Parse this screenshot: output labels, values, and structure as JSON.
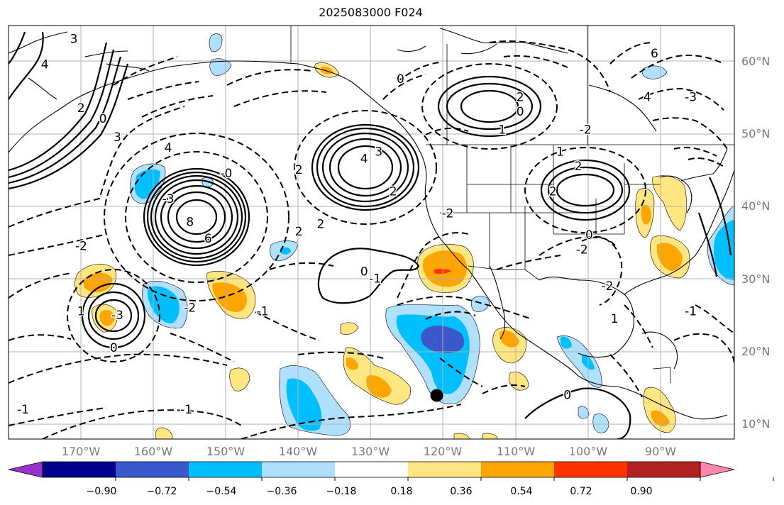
{
  "title": "2025083000 F024",
  "latitude_labels": [
    "60°N",
    "50°N",
    "40°N",
    "30°N",
    "20°N",
    "10°N"
  ],
  "longitude_labels": [
    "170°W",
    "160°W",
    "150°W",
    "140°W",
    "130°W",
    "120°W",
    "110°W",
    "100°W",
    "90°W"
  ],
  "colorbar": {
    "colors": [
      "#9932cc",
      "#00008b",
      "#3a58cc",
      "#00bfff",
      "#b0e0ff",
      "#ffffff",
      "#ffe680",
      "#ffa500",
      "#ff3300",
      "#b22222",
      "#ff88aa"
    ],
    "tick_labels": [
      "−0.90",
      "−0.72",
      "−0.54",
      "−0.36",
      "−0.18",
      "0.18",
      "0.36",
      "0.54",
      "0.72",
      "0.90"
    ]
  },
  "contour_labels": [
    {
      "text": "3",
      "lon": -171,
      "lat": 63
    },
    {
      "text": "4",
      "lon": -175,
      "lat": 59.5
    },
    {
      "text": "2",
      "lon": -170,
      "lat": 53.5
    },
    {
      "text": "0",
      "lon": -167,
      "lat": 52
    },
    {
      "text": "3",
      "lon": -165,
      "lat": 49.5
    },
    {
      "text": "4",
      "lon": -158,
      "lat": 48
    },
    {
      "text": "-0",
      "lon": -150,
      "lat": 44.5
    },
    {
      "text": "2",
      "lon": -140,
      "lat": 45
    },
    {
      "text": "-3",
      "lon": -158,
      "lat": 41
    },
    {
      "text": "8",
      "lon": -155,
      "lat": 37.8
    },
    {
      "text": "6",
      "lon": -152.5,
      "lat": 35.5
    },
    {
      "text": "-2",
      "lon": -170,
      "lat": 34.5
    },
    {
      "text": "2",
      "lon": -140,
      "lat": 36.5
    },
    {
      "text": "2",
      "lon": -137,
      "lat": 37.5
    },
    {
      "text": "4",
      "lon": -131,
      "lat": 46.5
    },
    {
      "text": "3",
      "lon": -129,
      "lat": 47.5
    },
    {
      "text": "2",
      "lon": -127,
      "lat": 42
    },
    {
      "text": "0",
      "lon": -126,
      "lat": 57.5
    },
    {
      "text": "0",
      "lon": -109.5,
      "lat": 53
    },
    {
      "text": "1",
      "lon": -112,
      "lat": 50.5
    },
    {
      "text": "2",
      "lon": -109.5,
      "lat": 55
    },
    {
      "text": "-2",
      "lon": -100.5,
      "lat": 50.5
    },
    {
      "text": "1",
      "lon": -104,
      "lat": 47.5
    },
    {
      "text": "2",
      "lon": -101.5,
      "lat": 45.5
    },
    {
      "text": "2",
      "lon": -105,
      "lat": 42
    },
    {
      "text": "-2",
      "lon": -119.5,
      "lat": 39
    },
    {
      "text": "0",
      "lon": -100,
      "lat": 36
    },
    {
      "text": "-2",
      "lon": -101,
      "lat": 34
    },
    {
      "text": "-2",
      "lon": -97.5,
      "lat": 29
    },
    {
      "text": "1",
      "lon": -96.5,
      "lat": 24.5
    },
    {
      "text": "0",
      "lon": -131,
      "lat": 31
    },
    {
      "text": "-1",
      "lon": -129.5,
      "lat": 30
    },
    {
      "text": "1",
      "lon": -170,
      "lat": 25.5
    },
    {
      "text": "-3",
      "lon": -165,
      "lat": 25
    },
    {
      "text": "0",
      "lon": -165.5,
      "lat": 20.5
    },
    {
      "text": "-2",
      "lon": -155,
      "lat": 26
    },
    {
      "text": "-1",
      "lon": -145,
      "lat": 25.5
    },
    {
      "text": "-1",
      "lon": -155.5,
      "lat": 12
    },
    {
      "text": "-1",
      "lon": -178,
      "lat": 12
    },
    {
      "text": "0",
      "lon": -103,
      "lat": 14
    },
    {
      "text": "-1",
      "lon": -86,
      "lat": 25.5
    },
    {
      "text": "6",
      "lon": -91,
      "lat": 61
    },
    {
      "text": "4",
      "lon": -92,
      "lat": 55
    },
    {
      "text": "-3",
      "lon": -86,
      "lat": 55
    }
  ],
  "features": [
    {
      "name": "storm-marker",
      "lon": -121,
      "lat": 14
    }
  ]
}
